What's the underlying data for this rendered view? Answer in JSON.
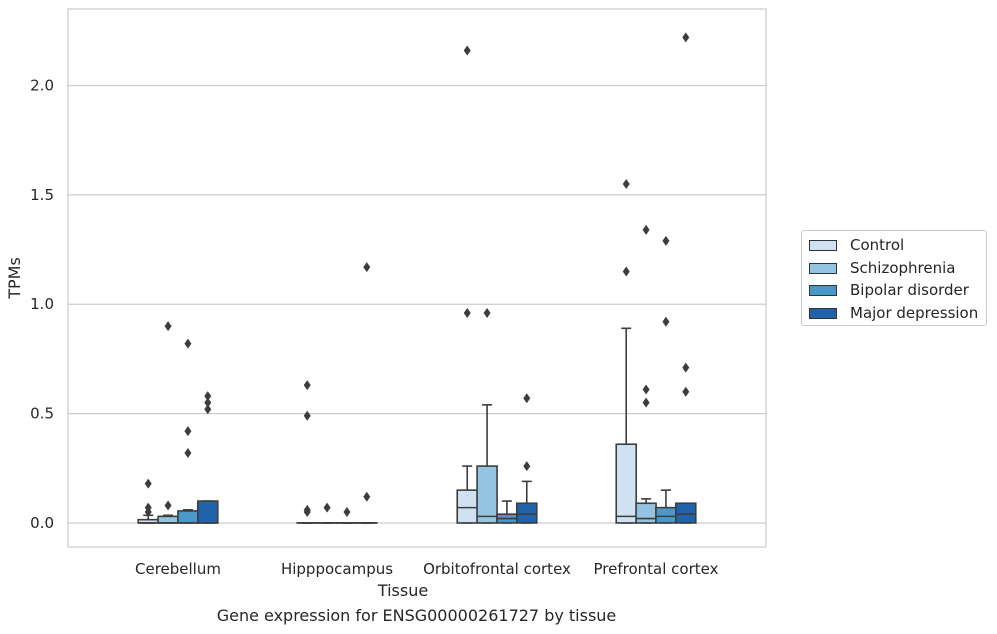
{
  "caption": "Gene expression for ENSG00000261727 by tissue",
  "chart_data": {
    "type": "box",
    "xlabel": "Tissue",
    "ylabel": "TPMs",
    "categories": [
      "Cerebellum",
      "Hipppocampus",
      "Orbitofrontal cortex",
      "Prefrontal cortex"
    ],
    "yticks": [
      "0.0",
      "0.5",
      "1.0",
      "1.5",
      "2.0"
    ],
    "ylim": [
      -0.11,
      2.35
    ],
    "grid": "horizontal",
    "legend_position": "outside-right",
    "series": [
      {
        "name": "Control",
        "color": "#d0e1f2",
        "boxes": [
          {
            "q1": 0.0,
            "median": 0.0,
            "q3": 0.015,
            "whisker_low": 0.0,
            "whisker_high": 0.035,
            "outliers": [
              0.05,
              0.07,
              0.18
            ]
          },
          {
            "q1": 0.0,
            "median": 0.0,
            "q3": 0.0,
            "whisker_low": 0.0,
            "whisker_high": 0.0,
            "outliers": [
              0.05,
              0.06,
              0.49,
              0.63
            ]
          },
          {
            "q1": 0.0,
            "median": 0.07,
            "q3": 0.15,
            "whisker_low": 0.0,
            "whisker_high": 0.26,
            "outliers": [
              0.96,
              2.16
            ]
          },
          {
            "q1": 0.0,
            "median": 0.03,
            "q3": 0.36,
            "whisker_low": 0.0,
            "whisker_high": 0.89,
            "outliers": [
              1.15,
              1.55
            ]
          }
        ]
      },
      {
        "name": "Schizophrenia",
        "color": "#94c4df",
        "boxes": [
          {
            "q1": 0.0,
            "median": 0.0,
            "q3": 0.03,
            "whisker_low": 0.0,
            "whisker_high": 0.035,
            "outliers": [
              0.08,
              0.9
            ]
          },
          {
            "q1": 0.0,
            "median": 0.0,
            "q3": 0.0,
            "whisker_low": 0.0,
            "whisker_high": 0.0,
            "outliers": [
              0.07
            ]
          },
          {
            "q1": 0.0,
            "median": 0.03,
            "q3": 0.26,
            "whisker_low": 0.0,
            "whisker_high": 0.54,
            "outliers": [
              0.96
            ]
          },
          {
            "q1": 0.0,
            "median": 0.02,
            "q3": 0.09,
            "whisker_low": 0.0,
            "whisker_high": 0.11,
            "outliers": [
              0.55,
              0.61,
              1.34
            ]
          }
        ]
      },
      {
        "name": "Bipolar disorder",
        "color": "#4a98c9",
        "boxes": [
          {
            "q1": 0.0,
            "median": 0.0,
            "q3": 0.055,
            "whisker_low": 0.0,
            "whisker_high": 0.06,
            "outliers": [
              0.32,
              0.42,
              0.82
            ]
          },
          {
            "q1": 0.0,
            "median": 0.0,
            "q3": 0.0,
            "whisker_low": 0.0,
            "whisker_high": 0.0,
            "outliers": [
              0.05
            ]
          },
          {
            "q1": 0.0,
            "median": 0.02,
            "q3": 0.04,
            "whisker_low": 0.0,
            "whisker_high": 0.1,
            "outliers": []
          },
          {
            "q1": 0.0,
            "median": 0.03,
            "q3": 0.07,
            "whisker_low": 0.0,
            "whisker_high": 0.15,
            "outliers": [
              0.92,
              1.29
            ]
          }
        ]
      },
      {
        "name": "Major depression",
        "color": "#2163aa",
        "boxes": [
          {
            "q1": 0.0,
            "median": 0.0,
            "q3": 0.1,
            "whisker_low": 0.0,
            "whisker_high": 0.1,
            "outliers": [
              0.52,
              0.55,
              0.58
            ]
          },
          {
            "q1": 0.0,
            "median": 0.0,
            "q3": 0.0,
            "whisker_low": 0.0,
            "whisker_high": 0.0,
            "outliers": [
              0.12,
              1.17
            ]
          },
          {
            "q1": 0.0,
            "median": 0.04,
            "q3": 0.09,
            "whisker_low": 0.0,
            "whisker_high": 0.19,
            "outliers": [
              0.26,
              0.57
            ]
          },
          {
            "q1": 0.0,
            "median": 0.04,
            "q3": 0.09,
            "whisker_low": 0.0,
            "whisker_high": 0.09,
            "outliers": [
              0.6,
              0.71,
              2.22
            ]
          }
        ]
      }
    ]
  }
}
